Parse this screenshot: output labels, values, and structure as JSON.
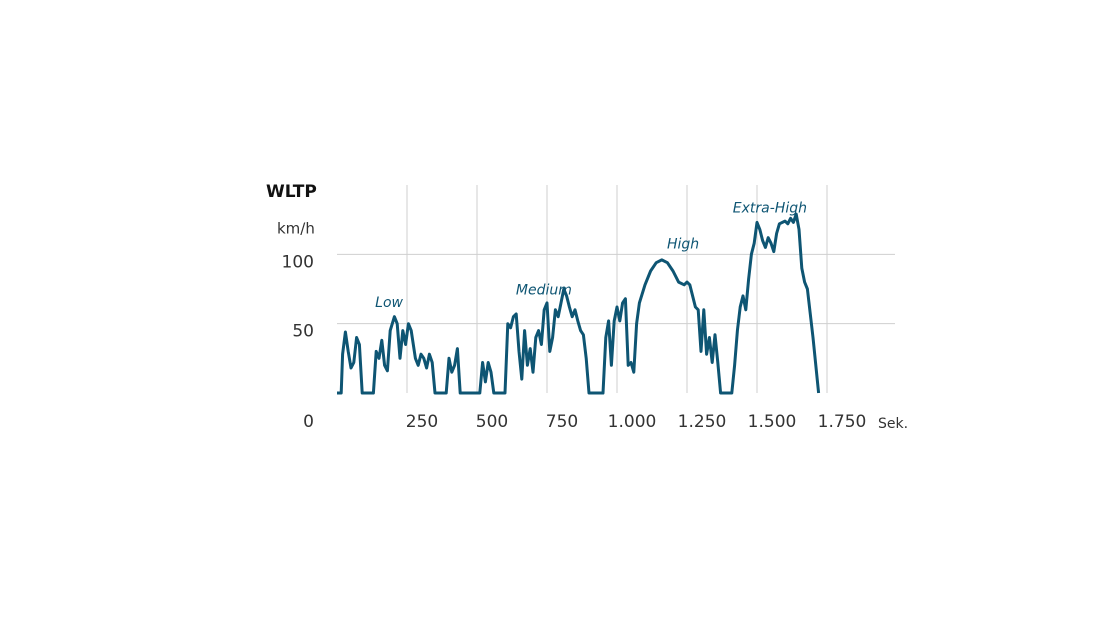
{
  "chart_data": {
    "type": "line",
    "title": "WLTP",
    "y_label": "km/h",
    "x_label": "Sek.",
    "x": [
      0,
      15,
      20,
      30,
      40,
      50,
      60,
      70,
      80,
      90,
      130,
      140,
      150,
      160,
      170,
      180,
      190,
      205,
      215,
      225,
      235,
      245,
      255,
      265,
      280,
      290,
      300,
      310,
      320,
      330,
      340,
      350,
      390,
      400,
      410,
      420,
      430,
      440,
      510,
      520,
      530,
      540,
      550,
      560,
      600,
      610,
      620,
      630,
      640,
      650,
      660,
      670,
      680,
      690,
      700,
      710,
      720,
      730,
      740,
      750,
      760,
      770,
      780,
      790,
      800,
      810,
      820,
      830,
      840,
      850,
      860,
      870,
      880,
      890,
      900,
      950,
      960,
      970,
      980,
      990,
      1000,
      1010,
      1020,
      1030,
      1040,
      1050,
      1060,
      1070,
      1080,
      1100,
      1120,
      1140,
      1160,
      1180,
      1200,
      1220,
      1240,
      1250,
      1260,
      1280,
      1290,
      1300,
      1310,
      1320,
      1330,
      1340,
      1350,
      1360,
      1370,
      1410,
      1420,
      1430,
      1440,
      1450,
      1460,
      1470,
      1480,
      1490,
      1500,
      1510,
      1520,
      1530,
      1540,
      1550,
      1560,
      1570,
      1580,
      1600,
      1610,
      1620,
      1630,
      1640,
      1650,
      1660,
      1670,
      1680,
      1700,
      1720
    ],
    "series": [
      {
        "name": "WLTP",
        "color": "#0e5573",
        "values": [
          0,
          0,
          28,
          44,
          30,
          18,
          22,
          40,
          35,
          0,
          0,
          30,
          25,
          38,
          20,
          16,
          45,
          55,
          50,
          25,
          45,
          35,
          50,
          45,
          25,
          20,
          28,
          25,
          18,
          28,
          22,
          0,
          0,
          25,
          15,
          20,
          32,
          0,
          0,
          22,
          8,
          22,
          15,
          0,
          0,
          50,
          47,
          55,
          57,
          30,
          10,
          45,
          20,
          32,
          15,
          40,
          45,
          35,
          60,
          65,
          30,
          40,
          60,
          55,
          65,
          75,
          70,
          62,
          55,
          60,
          52,
          45,
          42,
          25,
          0,
          0,
          40,
          52,
          20,
          52,
          62,
          52,
          65,
          68,
          20,
          22,
          15,
          50,
          65,
          78,
          88,
          94,
          96,
          94,
          88,
          80,
          78,
          80,
          78,
          62,
          60,
          30,
          60,
          28,
          40,
          22,
          42,
          22,
          0,
          0,
          20,
          45,
          62,
          70,
          60,
          82,
          100,
          108,
          123,
          118,
          110,
          105,
          112,
          108,
          102,
          115,
          122,
          124,
          122,
          126,
          123,
          129,
          118,
          90,
          80,
          75,
          40,
          0
        ]
      }
    ],
    "xlim": [
      0,
      2000
    ],
    "ylim": [
      0,
      150
    ],
    "xticks": [
      {
        "value": 250,
        "label": "250"
      },
      {
        "value": 500,
        "label": "500"
      },
      {
        "value": 750,
        "label": "750"
      },
      {
        "value": 1000,
        "label": "1.000"
      },
      {
        "value": 1250,
        "label": "1.250"
      },
      {
        "value": 1500,
        "label": "1.500"
      },
      {
        "value": 1750,
        "label": "1.750"
      }
    ],
    "yticks": [
      0,
      50,
      100
    ],
    "grid": true,
    "annotations": [
      {
        "text": "Low",
        "x": 186,
        "y": 65
      },
      {
        "text": "Medium",
        "x": 739,
        "y": 74
      },
      {
        "text": "High",
        "x": 1236,
        "y": 107
      },
      {
        "text": "Extra-High",
        "x": 1546,
        "y": 133
      }
    ]
  }
}
